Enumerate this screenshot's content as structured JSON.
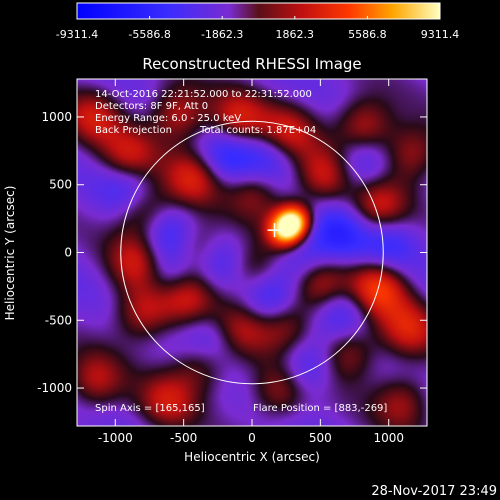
{
  "colorbar": {
    "ticks": [
      "-9311.4",
      "-5586.8",
      "-1862.3",
      "1862.3",
      "5586.8",
      "9311.4"
    ],
    "min": -9311.4,
    "max": 9311.4
  },
  "chart_data": {
    "type": "heatmap",
    "title": "Reconstructed RHESSI Image",
    "xlabel": "Heliocentric X (arcsec)",
    "ylabel": "Heliocentric Y (arcsec)",
    "xlim": [
      -1280,
      1280
    ],
    "ylim": [
      -1280,
      1280
    ],
    "x_ticks": [
      "-1000",
      "-500",
      "0",
      "500",
      "1000"
    ],
    "y_ticks": [
      "1000",
      "500",
      "0",
      "-500",
      "-1000"
    ],
    "x_tick_values": [
      -1000,
      -500,
      0,
      500,
      1000
    ],
    "y_tick_values": [
      1000,
      500,
      0,
      -500,
      -1000
    ],
    "solar_limb_radius_arcsec": 960,
    "flare_marker": [
      165,
      165
    ],
    "blobs": [
      {
        "x": 310,
        "y": 230,
        "v": 9311
      },
      {
        "x": 240,
        "y": 160,
        "v": 8200
      },
      {
        "x": -900,
        "y": 700,
        "v": 4200
      },
      {
        "x": -780,
        "y": 300,
        "v": 4500
      },
      {
        "x": -830,
        "y": -70,
        "v": 4300
      },
      {
        "x": -800,
        "y": -450,
        "v": 4200
      },
      {
        "x": -540,
        "y": 1020,
        "v": 4400
      },
      {
        "x": -420,
        "y": 560,
        "v": 4600
      },
      {
        "x": -390,
        "y": 20,
        "v": 4200
      },
      {
        "x": -480,
        "y": -320,
        "v": 4300
      },
      {
        "x": -370,
        "y": -820,
        "v": 3800
      },
      {
        "x": -100,
        "y": 980,
        "v": 4400
      },
      {
        "x": 30,
        "y": 460,
        "v": 3500
      },
      {
        "x": 0,
        "y": -130,
        "v": 3600
      },
      {
        "x": -90,
        "y": -560,
        "v": 3700
      },
      {
        "x": 200,
        "y": -1020,
        "v": 3800
      },
      {
        "x": 260,
        "y": 880,
        "v": 4200
      },
      {
        "x": 530,
        "y": 560,
        "v": 4300
      },
      {
        "x": 490,
        "y": -230,
        "v": 4500
      },
      {
        "x": 250,
        "y": -520,
        "v": 3800
      },
      {
        "x": 700,
        "y": -740,
        "v": 3900
      },
      {
        "x": 820,
        "y": 930,
        "v": 4600
      },
      {
        "x": 920,
        "y": 330,
        "v": 4400
      },
      {
        "x": 920,
        "y": -260,
        "v": 6200
      },
      {
        "x": 1150,
        "y": -560,
        "v": 4200
      },
      {
        "x": 1170,
        "y": 730,
        "v": 4000
      },
      {
        "x": -1160,
        "y": 1000,
        "v": 3800
      },
      {
        "x": -1150,
        "y": -950,
        "v": 3700
      },
      {
        "x": 1100,
        "y": -1100,
        "v": 3500
      },
      {
        "x": -620,
        "y": -1100,
        "v": 3700
      },
      {
        "x": -630,
        "y": 150,
        "v": -3400
      },
      {
        "x": -600,
        "y": -150,
        "v": -3600
      },
      {
        "x": -200,
        "y": 700,
        "v": -3600
      },
      {
        "x": -240,
        "y": -60,
        "v": -3400
      },
      {
        "x": 120,
        "y": -350,
        "v": -3500
      },
      {
        "x": 380,
        "y": -60,
        "v": -3300
      },
      {
        "x": 640,
        "y": 140,
        "v": -3600
      },
      {
        "x": 680,
        "y": -420,
        "v": -3300
      },
      {
        "x": 120,
        "y": 690,
        "v": -3200
      },
      {
        "x": -300,
        "y": -650,
        "v": -3400
      },
      {
        "x": 400,
        "y": -850,
        "v": -3300
      },
      {
        "x": 800,
        "y": 650,
        "v": -3300
      },
      {
        "x": -900,
        "y": 480,
        "v": -3200
      },
      {
        "x": 1000,
        "y": 60,
        "v": -3000
      }
    ]
  },
  "annotations": {
    "time_range": "14-Oct-2016 22:21:52.000 to 22:31:52.000",
    "detectors": "Detectors: 8F 9F, Att 0",
    "energy": "Energy Range: 6.0 - 25.0 keV",
    "method": "Back Projection",
    "counts": "Total counts: 1.87E+04",
    "spin_axis": "Spin Axis = [165,165]",
    "flare_position": "Flare Position = [883,-269]"
  },
  "footer": {
    "timestamp": "28-Nov-2017 23:49"
  }
}
